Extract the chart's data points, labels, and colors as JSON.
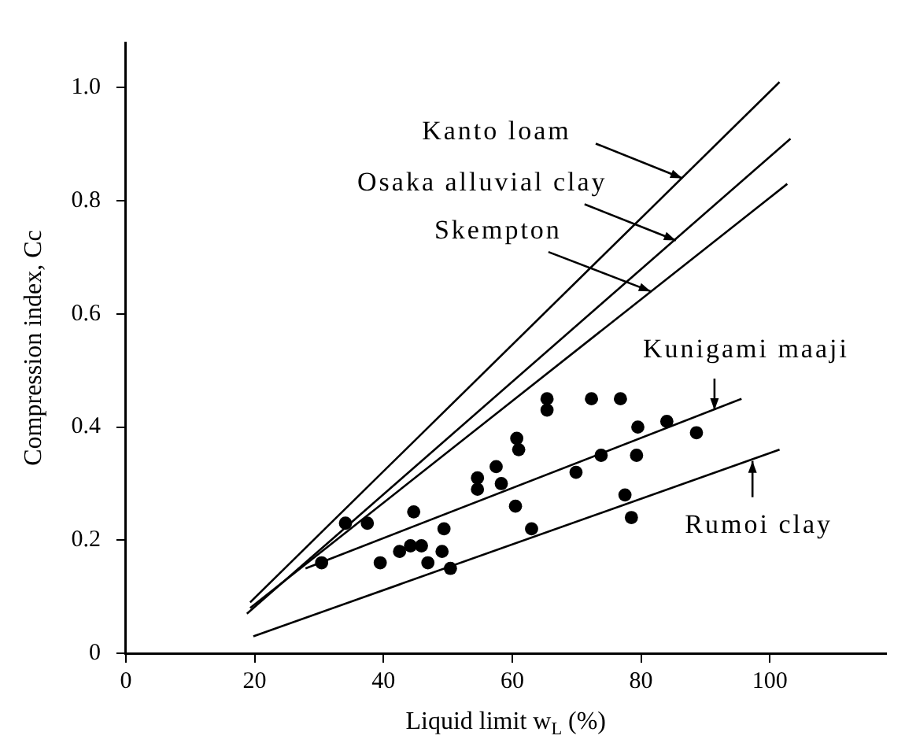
{
  "chart_data": {
    "type": "scatter",
    "xlabel": "Liquid limit w$_{L}$ (%)",
    "ylabel": "Compression index, Cc",
    "xlim": [
      0,
      118
    ],
    "ylim": [
      0,
      1.08
    ],
    "xticks": [
      0,
      20,
      40,
      60,
      80,
      100
    ],
    "yticks": [
      0,
      {
        "value": 0.2,
        "label": "0.2"
      },
      {
        "value": 0.4,
        "label": "0.4"
      },
      {
        "value": 0.6,
        "label": "0.6"
      },
      {
        "value": 0.8,
        "label": "0.8"
      },
      {
        "value": 1,
        "label": "1.0"
      }
    ],
    "grid": false,
    "legend": false,
    "marker": "circle",
    "series": [
      {
        "color": "#000000",
        "x": [
          34.1,
          37.5,
          30.4,
          39.5,
          42.5,
          44.2,
          45.9,
          49.1,
          46.9,
          44.7,
          49.4,
          50.4,
          54.6,
          54.6,
          57.5,
          58.3,
          60.5,
          60.7,
          61.0,
          63.0,
          65.4,
          65.4,
          72.3,
          76.8,
          69.9,
          73.8,
          79.3,
          79.5,
          84.0,
          88.6,
          77.5,
          78.5
        ],
        "values": [
          0.23,
          0.23,
          0.16,
          0.16,
          0.18,
          0.19,
          0.19,
          0.18,
          0.16,
          0.25,
          0.22,
          0.15,
          0.31,
          0.29,
          0.33,
          0.3,
          0.26,
          0.38,
          0.36,
          0.22,
          0.45,
          0.43,
          0.45,
          0.45,
          0.32,
          0.35,
          0.35,
          0.4,
          0.41,
          0.39,
          0.28,
          0.24
        ]
      },
      {
        "type": "line",
        "color": "#000000",
        "marker": "none",
        "x": [
          19.3,
          101.5
        ],
        "values": [
          0.09,
          1.01
        ]
      },
      {
        "type": "line",
        "color": "#000000",
        "marker": "none",
        "x": [
          18.8,
          103.2
        ],
        "values": [
          0.07,
          0.91
        ]
      },
      {
        "type": "line",
        "color": "#000000",
        "marker": "none",
        "x": [
          19.3,
          102.7
        ],
        "values": [
          0.08,
          0.83
        ]
      },
      {
        "type": "line",
        "color": "#000000",
        "marker": "none",
        "x": [
          27.9,
          95.6
        ],
        "values": [
          0.15,
          0.45
        ]
      },
      {
        "type": "line",
        "color": "#000000",
        "marker": "none",
        "x": [
          19.8,
          101.5
        ],
        "values": [
          0.03,
          0.36
        ]
      }
    ],
    "annotations": [
      {
        "text": "Kanto loam",
        "x": 86.4,
        "y": 0.84
      },
      {
        "text": "Osaka alluvial clay",
        "x": 85.4,
        "y": 0.73
      },
      {
        "text": "Skempton",
        "x": 81.5,
        "y": 0.64
      },
      {
        "text": "Kunigami maaji",
        "x": 91.4,
        "y": 0.43
      },
      {
        "text": "Rumoi clay",
        "x": 97.3,
        "y": 0.34
      }
    ]
  }
}
